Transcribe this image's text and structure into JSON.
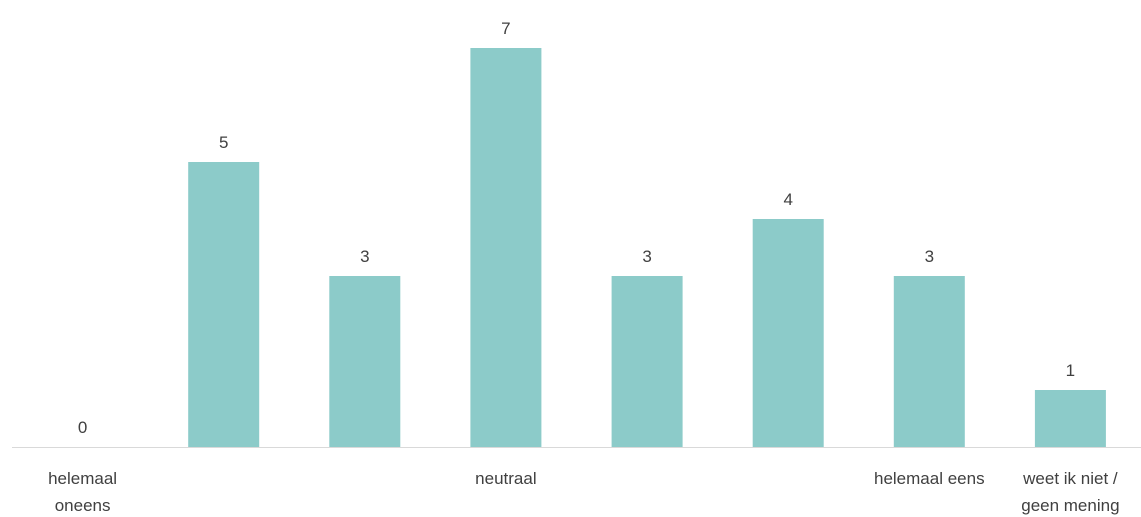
{
  "chart_data": {
    "type": "bar",
    "categories": [
      [
        "helemaal",
        "oneens"
      ],
      [],
      [],
      [
        "neutraal"
      ],
      [],
      [],
      [
        "helemaal eens"
      ],
      [
        "weet ik niet /",
        "geen mening"
      ]
    ],
    "values": [
      0,
      5,
      3,
      7,
      3,
      4,
      3,
      1
    ],
    "data_labels": [
      "0",
      "5",
      "3",
      "7",
      "3",
      "4",
      "3",
      "1"
    ],
    "ylim": [
      0,
      7
    ],
    "grid": false,
    "legend": "none",
    "colors": {
      "bar": "#8ccbc9",
      "axis": "#d9d9d9",
      "text": "#404040"
    }
  }
}
